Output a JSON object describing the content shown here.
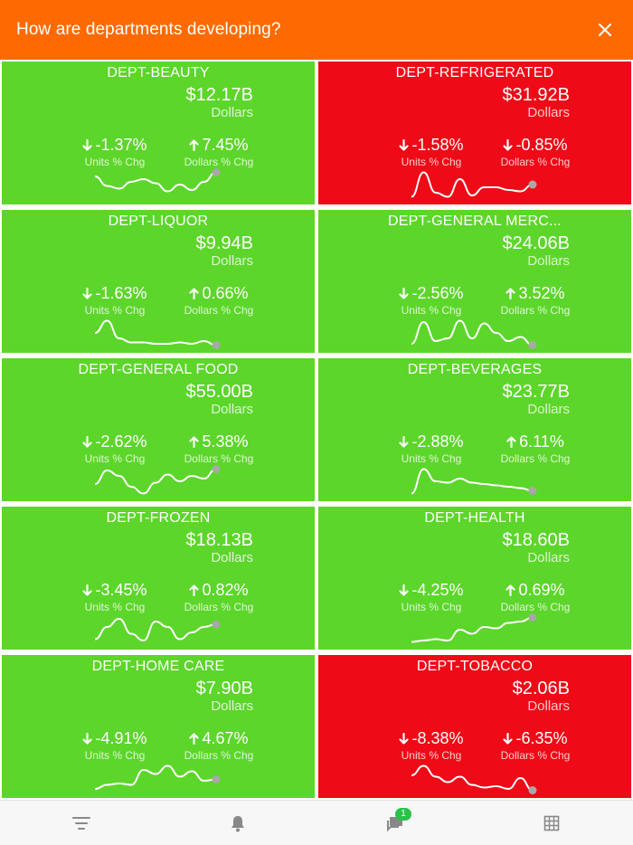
{
  "header": {
    "title": "How are departments developing?",
    "close_icon": "close-icon"
  },
  "colors": {
    "header": "#ff6a00",
    "up": "#5cd62a",
    "down": "#ee0a16",
    "spark_dot": "#a8a8a8"
  },
  "cards": [
    {
      "name": "DEPT-BEAUTY",
      "value": "$12.17B",
      "unit": "Dollars",
      "status": "up",
      "units_chg": "-1.37%",
      "units_dir": "down",
      "units_label": "Units % Chg",
      "dollars_chg": "7.45%",
      "dollars_dir": "up",
      "dollars_label": "Dollars % Chg",
      "spark": [
        0.8,
        0.45,
        0.35,
        0.6,
        0.7,
        0.55,
        0.25,
        0.5,
        0.3,
        0.6,
        0.95
      ]
    },
    {
      "name": "DEPT-REFRIGERATED",
      "value": "$31.92B",
      "unit": "Dollars",
      "status": "down",
      "units_chg": "-1.58%",
      "units_dir": "down",
      "units_label": "Units % Chg",
      "dollars_chg": "-0.85%",
      "dollars_dir": "down",
      "dollars_label": "Dollars % Chg",
      "spark": [
        0.05,
        0.95,
        0.2,
        0.05,
        0.7,
        0.1,
        0.4,
        0.4,
        0.3,
        0.25,
        0.5
      ]
    },
    {
      "name": "DEPT-LIQUOR",
      "value": "$9.94B",
      "unit": "Dollars",
      "status": "up",
      "units_chg": "-1.63%",
      "units_dir": "down",
      "units_label": "Units % Chg",
      "dollars_chg": "0.66%",
      "dollars_dir": "up",
      "dollars_label": "Dollars % Chg",
      "spark": [
        0.5,
        0.95,
        0.3,
        0.15,
        0.15,
        0.1,
        0.1,
        0.15,
        0.1,
        0.2,
        0.05
      ]
    },
    {
      "name": "DEPT-GENERAL MERC...",
      "value": "$24.06B",
      "unit": "Dollars",
      "status": "up",
      "units_chg": "-2.56%",
      "units_dir": "down",
      "units_label": "Units % Chg",
      "dollars_chg": "3.52%",
      "dollars_dir": "up",
      "dollars_label": "Dollars % Chg",
      "spark": [
        0.1,
        0.9,
        0.2,
        0.3,
        0.95,
        0.3,
        0.85,
        0.5,
        0.2,
        0.35,
        0.05
      ]
    },
    {
      "name": "DEPT-GENERAL FOOD",
      "value": "$55.00B",
      "unit": "Dollars",
      "status": "up",
      "units_chg": "-2.62%",
      "units_dir": "down",
      "units_label": "Units % Chg",
      "dollars_chg": "5.38%",
      "dollars_dir": "up",
      "dollars_label": "Dollars % Chg",
      "spark": [
        0.4,
        0.9,
        0.7,
        0.3,
        0.05,
        0.45,
        0.75,
        0.5,
        0.7,
        0.6,
        0.95
      ]
    },
    {
      "name": "DEPT-BEVERAGES",
      "value": "$23.77B",
      "unit": "Dollars",
      "status": "up",
      "units_chg": "-2.88%",
      "units_dir": "down",
      "units_label": "Units % Chg",
      "dollars_chg": "6.11%",
      "dollars_dir": "up",
      "dollars_label": "Dollars % Chg",
      "spark": [
        0.05,
        0.95,
        0.5,
        0.45,
        0.6,
        0.45,
        0.4,
        0.35,
        0.3,
        0.25,
        0.15
      ]
    },
    {
      "name": "DEPT-FROZEN",
      "value": "$18.13B",
      "unit": "Dollars",
      "status": "up",
      "units_chg": "-3.45%",
      "units_dir": "down",
      "units_label": "Units % Chg",
      "dollars_chg": "0.82%",
      "dollars_dir": "up",
      "dollars_label": "Dollars % Chg",
      "spark": [
        0.15,
        0.6,
        0.9,
        0.35,
        0.1,
        0.8,
        0.6,
        0.15,
        0.4,
        0.6,
        0.7
      ]
    },
    {
      "name": "DEPT-HEALTH",
      "value": "$18.60B",
      "unit": "Dollars",
      "status": "up",
      "units_chg": "-4.25%",
      "units_dir": "down",
      "units_label": "Units % Chg",
      "dollars_chg": "0.69%",
      "dollars_dir": "up",
      "dollars_label": "Dollars % Chg",
      "spark": [
        0.05,
        0.1,
        0.15,
        0.1,
        0.5,
        0.35,
        0.6,
        0.55,
        0.75,
        0.8,
        0.95
      ]
    },
    {
      "name": "DEPT-HOME CARE",
      "value": "$7.90B",
      "unit": "Dollars",
      "status": "up",
      "units_chg": "-4.91%",
      "units_dir": "down",
      "units_label": "Units % Chg",
      "dollars_chg": "4.67%",
      "dollars_dir": "up",
      "dollars_label": "Dollars % Chg",
      "spark": [
        0.1,
        0.25,
        0.3,
        0.25,
        0.8,
        0.65,
        0.95,
        0.55,
        0.75,
        0.4,
        0.45
      ]
    },
    {
      "name": "DEPT-TOBACCO",
      "value": "$2.06B",
      "unit": "Dollars",
      "status": "down",
      "units_chg": "-8.38%",
      "units_dir": "down",
      "units_label": "Units % Chg",
      "dollars_chg": "-6.35%",
      "dollars_dir": "down",
      "dollars_label": "Dollars % Chg",
      "spark": [
        0.6,
        0.95,
        0.55,
        0.35,
        0.55,
        0.25,
        0.15,
        0.2,
        0.1,
        0.5,
        0.05
      ]
    }
  ],
  "bottom_nav": {
    "items": [
      {
        "name": "filter-icon"
      },
      {
        "name": "bell-icon"
      },
      {
        "name": "messages-icon",
        "badge": "1"
      },
      {
        "name": "grid-icon"
      }
    ]
  }
}
